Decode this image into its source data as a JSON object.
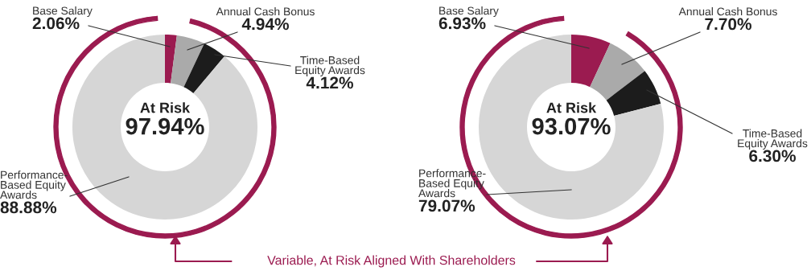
{
  "chart_data": [
    {
      "type": "donut",
      "categories": [
        "Base Salary",
        "Annual Cash Bonus",
        "Time-Based\nEquity Awards",
        "Performance-\nBased Equity\nAwards"
      ],
      "values": [
        2.06,
        4.94,
        4.12,
        88.88
      ],
      "value_labels": [
        "2.06%",
        "4.94%",
        "4.12%",
        "88.88%"
      ],
      "colors": [
        "#9b1b50",
        "#aaaaaa",
        "#1c1c1c",
        "#d6d6d6"
      ],
      "annotations": [
        "At Risk",
        "97.94%",
        "Variable, At Risk Aligned With Shareholders"
      ]
    },
    {
      "type": "donut",
      "categories": [
        "Base Salary",
        "Annual Cash Bonus",
        "Time-Based\nEquity Awards",
        "Performance-\nBased Equity\nAwards"
      ],
      "values": [
        6.93,
        7.7,
        6.3,
        79.07
      ],
      "value_labels": [
        "6.93%",
        "7.70%",
        "6.30%",
        "79.07%"
      ],
      "colors": [
        "#9b1b50",
        "#aaaaaa",
        "#1c1c1c",
        "#d6d6d6"
      ],
      "annotations": [
        "At Risk",
        "93.07%"
      ]
    }
  ]
}
